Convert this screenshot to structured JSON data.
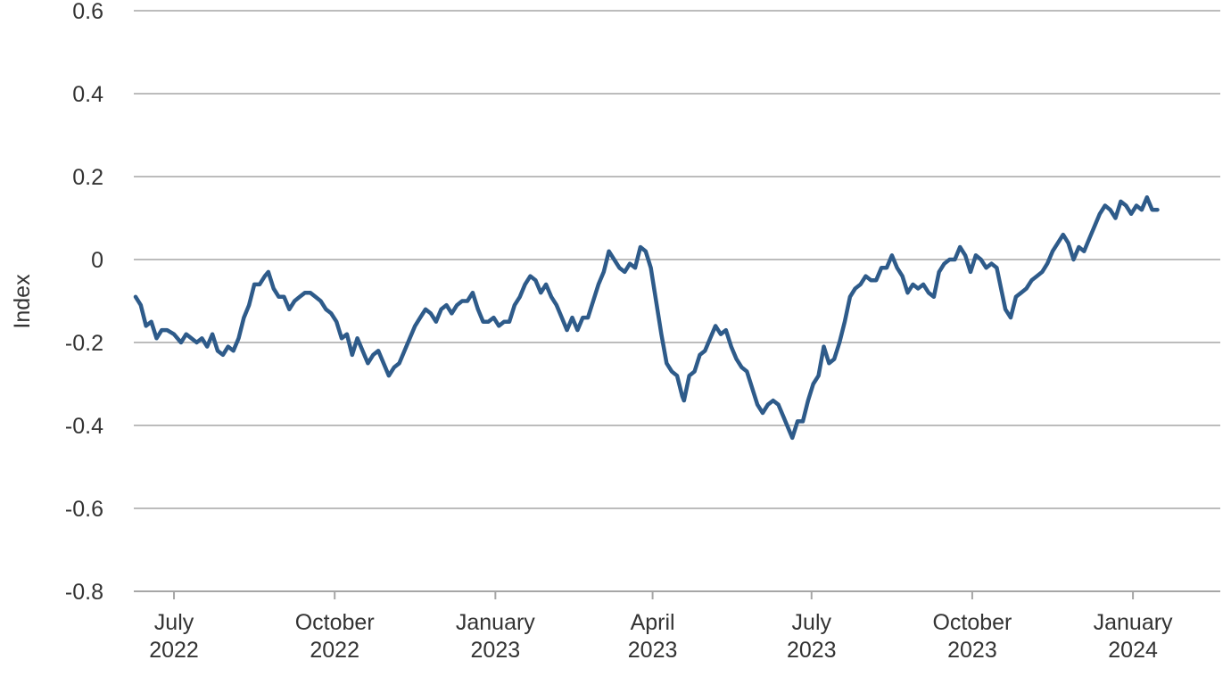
{
  "chart_data": {
    "type": "line",
    "title": "",
    "xlabel": "",
    "ylabel": "Index",
    "ylim": [
      -0.8,
      0.6
    ],
    "yticks": [
      -0.8,
      -0.6,
      -0.4,
      -0.2,
      0,
      0.2,
      0.4,
      0.6
    ],
    "ytick_labels": [
      "-0.8",
      "-0.6",
      "-0.4",
      "-0.2",
      "0",
      "0.2",
      "0.4",
      "0.6"
    ],
    "xlim": [
      "2022-06-08",
      "2024-02-20"
    ],
    "xticks": [
      {
        "date": "2022-07-01",
        "month": "July",
        "year": "2022"
      },
      {
        "date": "2022-10-01",
        "month": "October",
        "year": "2022"
      },
      {
        "date": "2023-01-01",
        "month": "January",
        "year": "2023"
      },
      {
        "date": "2023-04-01",
        "month": "April",
        "year": "2023"
      },
      {
        "date": "2023-07-01",
        "month": "July",
        "year": "2023"
      },
      {
        "date": "2023-10-01",
        "month": "October",
        "year": "2023"
      },
      {
        "date": "2024-01-01",
        "month": "January",
        "year": "2024"
      }
    ],
    "grid": "horizontal",
    "line_color": "#2e5b8a",
    "grid_color": "#a6a6a6",
    "series": [
      {
        "points": [
          [
            "2022-06-09",
            -0.09
          ],
          [
            "2022-06-12",
            -0.11
          ],
          [
            "2022-06-15",
            -0.16
          ],
          [
            "2022-06-18",
            -0.15
          ],
          [
            "2022-06-21",
            -0.19
          ],
          [
            "2022-06-24",
            -0.17
          ],
          [
            "2022-06-27",
            -0.17
          ],
          [
            "2022-07-01",
            -0.18
          ],
          [
            "2022-07-05",
            -0.2
          ],
          [
            "2022-07-08",
            -0.18
          ],
          [
            "2022-07-11",
            -0.19
          ],
          [
            "2022-07-14",
            -0.2
          ],
          [
            "2022-07-17",
            -0.19
          ],
          [
            "2022-07-20",
            -0.21
          ],
          [
            "2022-07-23",
            -0.18
          ],
          [
            "2022-07-26",
            -0.22
          ],
          [
            "2022-07-29",
            -0.23
          ],
          [
            "2022-08-01",
            -0.21
          ],
          [
            "2022-08-04",
            -0.22
          ],
          [
            "2022-08-07",
            -0.19
          ],
          [
            "2022-08-10",
            -0.14
          ],
          [
            "2022-08-13",
            -0.11
          ],
          [
            "2022-08-16",
            -0.06
          ],
          [
            "2022-08-19",
            -0.06
          ],
          [
            "2022-08-22",
            -0.04
          ],
          [
            "2022-08-24",
            -0.03
          ],
          [
            "2022-08-27",
            -0.07
          ],
          [
            "2022-08-30",
            -0.09
          ],
          [
            "2022-09-02",
            -0.09
          ],
          [
            "2022-09-05",
            -0.12
          ],
          [
            "2022-09-08",
            -0.1
          ],
          [
            "2022-09-11",
            -0.09
          ],
          [
            "2022-09-14",
            -0.08
          ],
          [
            "2022-09-17",
            -0.08
          ],
          [
            "2022-09-20",
            -0.09
          ],
          [
            "2022-09-23",
            -0.1
          ],
          [
            "2022-09-26",
            -0.12
          ],
          [
            "2022-09-29",
            -0.13
          ],
          [
            "2022-10-02",
            -0.15
          ],
          [
            "2022-10-05",
            -0.19
          ],
          [
            "2022-10-08",
            -0.18
          ],
          [
            "2022-10-11",
            -0.23
          ],
          [
            "2022-10-14",
            -0.19
          ],
          [
            "2022-10-17",
            -0.22
          ],
          [
            "2022-10-20",
            -0.25
          ],
          [
            "2022-10-23",
            -0.23
          ],
          [
            "2022-10-26",
            -0.22
          ],
          [
            "2022-10-29",
            -0.25
          ],
          [
            "2022-11-01",
            -0.28
          ],
          [
            "2022-11-04",
            -0.26
          ],
          [
            "2022-11-07",
            -0.25
          ],
          [
            "2022-11-10",
            -0.22
          ],
          [
            "2022-11-13",
            -0.19
          ],
          [
            "2022-11-16",
            -0.16
          ],
          [
            "2022-11-19",
            -0.14
          ],
          [
            "2022-11-22",
            -0.12
          ],
          [
            "2022-11-25",
            -0.13
          ],
          [
            "2022-11-28",
            -0.15
          ],
          [
            "2022-12-01",
            -0.12
          ],
          [
            "2022-12-04",
            -0.11
          ],
          [
            "2022-12-07",
            -0.13
          ],
          [
            "2022-12-10",
            -0.11
          ],
          [
            "2022-12-13",
            -0.1
          ],
          [
            "2022-12-16",
            -0.1
          ],
          [
            "2022-12-19",
            -0.08
          ],
          [
            "2022-12-22",
            -0.12
          ],
          [
            "2022-12-25",
            -0.15
          ],
          [
            "2022-12-28",
            -0.15
          ],
          [
            "2022-12-31",
            -0.14
          ],
          [
            "2023-01-03",
            -0.16
          ],
          [
            "2023-01-06",
            -0.15
          ],
          [
            "2023-01-09",
            -0.15
          ],
          [
            "2023-01-12",
            -0.11
          ],
          [
            "2023-01-15",
            -0.09
          ],
          [
            "2023-01-18",
            -0.06
          ],
          [
            "2023-01-21",
            -0.04
          ],
          [
            "2023-01-24",
            -0.05
          ],
          [
            "2023-01-27",
            -0.08
          ],
          [
            "2023-01-30",
            -0.06
          ],
          [
            "2023-02-02",
            -0.09
          ],
          [
            "2023-02-05",
            -0.11
          ],
          [
            "2023-02-08",
            -0.14
          ],
          [
            "2023-02-11",
            -0.17
          ],
          [
            "2023-02-14",
            -0.14
          ],
          [
            "2023-02-17",
            -0.17
          ],
          [
            "2023-02-20",
            -0.14
          ],
          [
            "2023-02-23",
            -0.14
          ],
          [
            "2023-02-26",
            -0.1
          ],
          [
            "2023-03-01",
            -0.06
          ],
          [
            "2023-03-04",
            -0.03
          ],
          [
            "2023-03-07",
            0.02
          ],
          [
            "2023-03-10",
            0.0
          ],
          [
            "2023-03-13",
            -0.02
          ],
          [
            "2023-03-16",
            -0.03
          ],
          [
            "2023-03-19",
            -0.01
          ],
          [
            "2023-03-22",
            -0.02
          ],
          [
            "2023-03-25",
            0.03
          ],
          [
            "2023-03-28",
            0.02
          ],
          [
            "2023-03-31",
            -0.02
          ],
          [
            "2023-04-03",
            -0.1
          ],
          [
            "2023-04-06",
            -0.18
          ],
          [
            "2023-04-09",
            -0.25
          ],
          [
            "2023-04-12",
            -0.27
          ],
          [
            "2023-04-15",
            -0.28
          ],
          [
            "2023-04-18",
            -0.33
          ],
          [
            "2023-04-19",
            -0.34
          ],
          [
            "2023-04-22",
            -0.28
          ],
          [
            "2023-04-25",
            -0.27
          ],
          [
            "2023-04-28",
            -0.23
          ],
          [
            "2023-05-01",
            -0.22
          ],
          [
            "2023-05-04",
            -0.19
          ],
          [
            "2023-05-07",
            -0.16
          ],
          [
            "2023-05-10",
            -0.18
          ],
          [
            "2023-05-13",
            -0.17
          ],
          [
            "2023-05-16",
            -0.21
          ],
          [
            "2023-05-19",
            -0.24
          ],
          [
            "2023-05-22",
            -0.26
          ],
          [
            "2023-05-25",
            -0.27
          ],
          [
            "2023-05-28",
            -0.31
          ],
          [
            "2023-05-31",
            -0.35
          ],
          [
            "2023-06-03",
            -0.37
          ],
          [
            "2023-06-06",
            -0.35
          ],
          [
            "2023-06-09",
            -0.34
          ],
          [
            "2023-06-12",
            -0.35
          ],
          [
            "2023-06-15",
            -0.38
          ],
          [
            "2023-06-18",
            -0.41
          ],
          [
            "2023-06-20",
            -0.43
          ],
          [
            "2023-06-23",
            -0.39
          ],
          [
            "2023-06-26",
            -0.39
          ],
          [
            "2023-06-29",
            -0.34
          ],
          [
            "2023-07-02",
            -0.3
          ],
          [
            "2023-07-05",
            -0.28
          ],
          [
            "2023-07-08",
            -0.21
          ],
          [
            "2023-07-11",
            -0.25
          ],
          [
            "2023-07-14",
            -0.24
          ],
          [
            "2023-07-17",
            -0.2
          ],
          [
            "2023-07-20",
            -0.15
          ],
          [
            "2023-07-23",
            -0.09
          ],
          [
            "2023-07-26",
            -0.07
          ],
          [
            "2023-07-29",
            -0.06
          ],
          [
            "2023-08-01",
            -0.04
          ],
          [
            "2023-08-04",
            -0.05
          ],
          [
            "2023-08-07",
            -0.05
          ],
          [
            "2023-08-10",
            -0.02
          ],
          [
            "2023-08-13",
            -0.02
          ],
          [
            "2023-08-16",
            0.01
          ],
          [
            "2023-08-19",
            -0.02
          ],
          [
            "2023-08-22",
            -0.04
          ],
          [
            "2023-08-25",
            -0.08
          ],
          [
            "2023-08-28",
            -0.06
          ],
          [
            "2023-08-31",
            -0.07
          ],
          [
            "2023-09-03",
            -0.06
          ],
          [
            "2023-09-06",
            -0.08
          ],
          [
            "2023-09-09",
            -0.09
          ],
          [
            "2023-09-12",
            -0.03
          ],
          [
            "2023-09-15",
            -0.01
          ],
          [
            "2023-09-18",
            0.0
          ],
          [
            "2023-09-21",
            0.0
          ],
          [
            "2023-09-24",
            0.03
          ],
          [
            "2023-09-27",
            0.01
          ],
          [
            "2023-09-30",
            -0.03
          ],
          [
            "2023-10-03",
            0.01
          ],
          [
            "2023-10-06",
            0.0
          ],
          [
            "2023-10-09",
            -0.02
          ],
          [
            "2023-10-12",
            -0.01
          ],
          [
            "2023-10-15",
            -0.02
          ],
          [
            "2023-10-18",
            -0.08
          ],
          [
            "2023-10-20",
            -0.12
          ],
          [
            "2023-10-23",
            -0.14
          ],
          [
            "2023-10-26",
            -0.09
          ],
          [
            "2023-10-29",
            -0.08
          ],
          [
            "2023-11-01",
            -0.07
          ],
          [
            "2023-11-04",
            -0.05
          ],
          [
            "2023-11-07",
            -0.04
          ],
          [
            "2023-11-10",
            -0.03
          ],
          [
            "2023-11-13",
            -0.01
          ],
          [
            "2023-11-16",
            0.02
          ],
          [
            "2023-11-19",
            0.04
          ],
          [
            "2023-11-22",
            0.06
          ],
          [
            "2023-11-25",
            0.04
          ],
          [
            "2023-11-28",
            0.0
          ],
          [
            "2023-12-01",
            0.03
          ],
          [
            "2023-12-04",
            0.02
          ],
          [
            "2023-12-07",
            0.05
          ],
          [
            "2023-12-10",
            0.08
          ],
          [
            "2023-12-13",
            0.11
          ],
          [
            "2023-12-16",
            0.13
          ],
          [
            "2023-12-19",
            0.12
          ],
          [
            "2023-12-22",
            0.1
          ],
          [
            "2023-12-25",
            0.14
          ],
          [
            "2023-12-28",
            0.13
          ],
          [
            "2023-12-31",
            0.11
          ],
          [
            "2024-01-03",
            0.13
          ],
          [
            "2024-01-06",
            0.12
          ],
          [
            "2024-01-09",
            0.15
          ],
          [
            "2024-01-12",
            0.12
          ],
          [
            "2024-01-15",
            0.12
          ]
        ]
      }
    ]
  }
}
